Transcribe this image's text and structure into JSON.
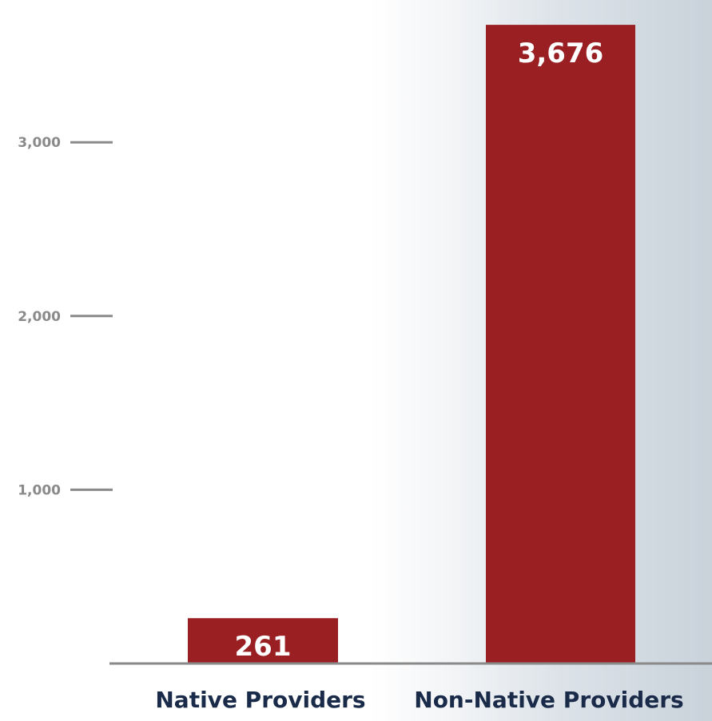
{
  "chart_data": {
    "type": "bar",
    "categories": [
      "Native Providers",
      "Non-Native Providers"
    ],
    "values": [
      261,
      3676
    ],
    "value_labels": [
      "261",
      "3,676"
    ],
    "y_ticks": [
      1000,
      2000,
      3000
    ],
    "y_tick_labels": [
      "1,000",
      "2,000",
      "3,000"
    ],
    "ylim": [
      0,
      3680
    ],
    "grid": false,
    "bar_color": "#9a1f23",
    "axis_color": "#8a8a8a",
    "category_label_color": "#1a2b4a"
  }
}
